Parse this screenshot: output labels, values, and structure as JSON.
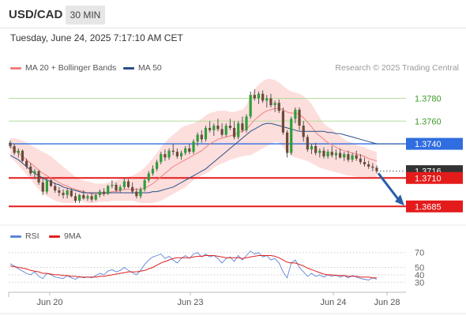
{
  "header": {
    "symbol": "USD/CAD",
    "timeframe": "30 MIN",
    "datetime": "Tuesday, June 24, 2025 7:17:10 AM CET",
    "credit": "Research © 2025 Trading Central"
  },
  "legends": {
    "main": [
      {
        "label": "MA 20 + Bollinger Bands",
        "color": "#f08080"
      },
      {
        "label": "MA 50",
        "color": "#2a4f8a"
      }
    ],
    "rsi": [
      {
        "label": "RSI",
        "color": "#5c86d6"
      },
      {
        "label": "9MA",
        "color": "#e02020"
      }
    ]
  },
  "chart_data": [
    {
      "type": "candlestick",
      "symbol": "USD/CAD",
      "x_ticks": [
        "Jun 20",
        "Jun 23",
        "Jun 24",
        "Jun 28"
      ],
      "ylim": [
        1.3672,
        1.3797
      ],
      "current_price": 1.3716,
      "levels": [
        {
          "label": "1.3780",
          "value": 1.378,
          "color": "#a8d68a",
          "label_color": "#3d9a2a",
          "style": "resistance"
        },
        {
          "label": "1.3760",
          "value": 1.376,
          "color": "#a8d68a",
          "label_color": "#3d9a2a",
          "style": "resistance"
        },
        {
          "label": "1.3740",
          "value": 1.374,
          "color": "#2f6de0",
          "label_color": "#ffffff",
          "style": "pivot"
        },
        {
          "label": "1.3716",
          "value": 1.3716,
          "color": "#333333",
          "label_color": "#ffffff",
          "style": "last"
        },
        {
          "label": "1.3710",
          "value": 1.371,
          "color": "#e41b1b",
          "label_color": "#ffffff",
          "style": "support"
        },
        {
          "label": "1.3685",
          "value": 1.3685,
          "color": "#e41b1b",
          "label_color": "#ffffff",
          "style": "support"
        }
      ],
      "candles": [
        [
          1.3741,
          1.3743,
          1.3736,
          1.3738
        ],
        [
          1.3738,
          1.374,
          1.373,
          1.3732
        ],
        [
          1.3732,
          1.3736,
          1.3728,
          1.3734
        ],
        [
          1.3734,
          1.3735,
          1.3724,
          1.3725
        ],
        [
          1.3725,
          1.3727,
          1.3718,
          1.372
        ],
        [
          1.372,
          1.3723,
          1.3712,
          1.3714
        ],
        [
          1.3714,
          1.3718,
          1.3709,
          1.3716
        ],
        [
          1.3716,
          1.3717,
          1.3704,
          1.3706
        ],
        [
          1.3706,
          1.3711,
          1.3695,
          1.3698
        ],
        [
          1.3698,
          1.371,
          1.3696,
          1.3708
        ],
        [
          1.3708,
          1.371,
          1.3702,
          1.3703
        ],
        [
          1.3703,
          1.3706,
          1.3697,
          1.3699
        ],
        [
          1.3699,
          1.3702,
          1.3694,
          1.3697
        ],
        [
          1.3697,
          1.37,
          1.3692,
          1.3695
        ],
        [
          1.3695,
          1.3701,
          1.3692,
          1.3699
        ],
        [
          1.3699,
          1.3701,
          1.3693,
          1.3694
        ],
        [
          1.3694,
          1.3697,
          1.3688,
          1.369
        ],
        [
          1.369,
          1.3696,
          1.3688,
          1.3695
        ],
        [
          1.3695,
          1.3699,
          1.3691,
          1.3692
        ],
        [
          1.3692,
          1.3696,
          1.369,
          1.3694
        ],
        [
          1.3694,
          1.3697,
          1.3689,
          1.3691
        ],
        [
          1.3691,
          1.3696,
          1.369,
          1.3695
        ],
        [
          1.3695,
          1.37,
          1.3693,
          1.3698
        ],
        [
          1.3698,
          1.3701,
          1.3694,
          1.3696
        ],
        [
          1.3696,
          1.3704,
          1.3695,
          1.3703
        ],
        [
          1.3703,
          1.3708,
          1.3701,
          1.3704
        ],
        [
          1.3704,
          1.3706,
          1.3698,
          1.3699
        ],
        [
          1.3699,
          1.3704,
          1.3697,
          1.3702
        ],
        [
          1.3702,
          1.371,
          1.37,
          1.3707
        ],
        [
          1.3707,
          1.3709,
          1.3701,
          1.3702
        ],
        [
          1.3702,
          1.3706,
          1.3696,
          1.3698
        ],
        [
          1.3698,
          1.3701,
          1.3692,
          1.3694
        ],
        [
          1.3694,
          1.3702,
          1.3692,
          1.37
        ],
        [
          1.37,
          1.371,
          1.3698,
          1.3708
        ],
        [
          1.3708,
          1.3716,
          1.3706,
          1.3714
        ],
        [
          1.3714,
          1.3721,
          1.3712,
          1.3718
        ],
        [
          1.3718,
          1.3726,
          1.3716,
          1.3724
        ],
        [
          1.3724,
          1.3733,
          1.3722,
          1.3731
        ],
        [
          1.3731,
          1.3735,
          1.3725,
          1.3728
        ],
        [
          1.3728,
          1.3736,
          1.3726,
          1.3734
        ],
        [
          1.3734,
          1.374,
          1.373,
          1.3733
        ],
        [
          1.3733,
          1.3736,
          1.3727,
          1.3729
        ],
        [
          1.3729,
          1.3734,
          1.3726,
          1.3732
        ],
        [
          1.3732,
          1.3738,
          1.373,
          1.3736
        ],
        [
          1.3736,
          1.374,
          1.3731,
          1.3733
        ],
        [
          1.3733,
          1.3744,
          1.3731,
          1.3742
        ],
        [
          1.3742,
          1.375,
          1.3738,
          1.3748
        ],
        [
          1.3748,
          1.3752,
          1.3741,
          1.3744
        ],
        [
          1.3744,
          1.3756,
          1.3742,
          1.3754
        ],
        [
          1.3754,
          1.376,
          1.375,
          1.3752
        ],
        [
          1.3752,
          1.3758,
          1.3747,
          1.3756
        ],
        [
          1.3756,
          1.3762,
          1.3751,
          1.3753
        ],
        [
          1.3753,
          1.3758,
          1.3746,
          1.3748
        ],
        [
          1.3748,
          1.3758,
          1.3746,
          1.3756
        ],
        [
          1.3756,
          1.3762,
          1.3752,
          1.3754
        ],
        [
          1.3754,
          1.376,
          1.3744,
          1.3746
        ],
        [
          1.3746,
          1.376,
          1.3744,
          1.3758
        ],
        [
          1.3758,
          1.3764,
          1.375,
          1.3752
        ],
        [
          1.3752,
          1.3766,
          1.375,
          1.3764
        ],
        [
          1.3764,
          1.3786,
          1.3762,
          1.3783
        ],
        [
          1.3783,
          1.3788,
          1.3778,
          1.378
        ],
        [
          1.378,
          1.3786,
          1.3775,
          1.3784
        ],
        [
          1.3784,
          1.3787,
          1.3776,
          1.3778
        ],
        [
          1.3778,
          1.3783,
          1.3772,
          1.378
        ],
        [
          1.378,
          1.3784,
          1.3772,
          1.3774
        ],
        [
          1.3774,
          1.3778,
          1.3768,
          1.3776
        ],
        [
          1.3776,
          1.3779,
          1.3767,
          1.3769
        ],
        [
          1.3769,
          1.3772,
          1.3748,
          1.375
        ],
        [
          1.375,
          1.3752,
          1.3728,
          1.3732
        ],
        [
          1.3732,
          1.3764,
          1.373,
          1.3762
        ],
        [
          1.3762,
          1.3772,
          1.3758,
          1.377
        ],
        [
          1.377,
          1.3772,
          1.3752,
          1.3756
        ],
        [
          1.3756,
          1.376,
          1.3742,
          1.3746
        ],
        [
          1.3746,
          1.3748,
          1.3733,
          1.3735
        ],
        [
          1.3735,
          1.374,
          1.3731,
          1.3738
        ],
        [
          1.3738,
          1.3741,
          1.373,
          1.3732
        ],
        [
          1.3732,
          1.3736,
          1.3728,
          1.3734
        ],
        [
          1.3734,
          1.3737,
          1.3727,
          1.3729
        ],
        [
          1.3729,
          1.3735,
          1.3727,
          1.3733
        ],
        [
          1.3733,
          1.3738,
          1.3728,
          1.373
        ],
        [
          1.373,
          1.3735,
          1.3726,
          1.3732
        ],
        [
          1.3732,
          1.3736,
          1.3727,
          1.3728
        ],
        [
          1.3728,
          1.3733,
          1.3725,
          1.3731
        ],
        [
          1.3731,
          1.3734,
          1.3724,
          1.3726
        ],
        [
          1.3726,
          1.3732,
          1.3724,
          1.373
        ],
        [
          1.373,
          1.3734,
          1.3725,
          1.3727
        ],
        [
          1.3727,
          1.3731,
          1.3722,
          1.3724
        ],
        [
          1.3724,
          1.3728,
          1.372,
          1.3722
        ],
        [
          1.3722,
          1.3725,
          1.3718,
          1.372
        ],
        [
          1.372,
          1.3723,
          1.3716,
          1.3719
        ],
        [
          1.3719,
          1.3721,
          1.3714,
          1.3716
        ]
      ],
      "ma20": [
        1.3738,
        1.3735,
        1.3732,
        1.3729,
        1.3726,
        1.3723,
        1.372,
        1.3717,
        1.3714,
        1.3712,
        1.371,
        1.3708,
        1.3706,
        1.3704,
        1.3703,
        1.3701,
        1.37,
        1.3699,
        1.3698,
        1.3697,
        1.3696,
        1.3696,
        1.3696,
        1.3696,
        1.3697,
        1.3698,
        1.3698,
        1.3699,
        1.37,
        1.37,
        1.37,
        1.37,
        1.37,
        1.3701,
        1.3703,
        1.3705,
        1.3708,
        1.3711,
        1.3714,
        1.3717,
        1.372,
        1.3722,
        1.3724,
        1.3726,
        1.3728,
        1.373,
        1.3732,
        1.3734,
        1.3737,
        1.374,
        1.3742,
        1.3744,
        1.3745,
        1.3746,
        1.3747,
        1.3748,
        1.375,
        1.3751,
        1.3753,
        1.3757,
        1.3761,
        1.3764,
        1.3767,
        1.3769,
        1.377,
        1.3771,
        1.3771,
        1.377,
        1.3768,
        1.3767,
        1.3767,
        1.3766,
        1.3763,
        1.3759,
        1.3755,
        1.375,
        1.3747,
        1.3744,
        1.3741,
        1.3739,
        1.3737,
        1.3735,
        1.3734,
        1.3733,
        1.3732,
        1.3731,
        1.373,
        1.3729,
        1.3727,
        1.3726,
        1.3725
      ],
      "bb_upper": [
        1.3745,
        1.3745,
        1.3744,
        1.3743,
        1.3741,
        1.3739,
        1.3737,
        1.3735,
        1.3733,
        1.3731,
        1.3729,
        1.3726,
        1.3723,
        1.372,
        1.3717,
        1.3714,
        1.3711,
        1.3709,
        1.3708,
        1.3707,
        1.3706,
        1.3705,
        1.3705,
        1.3705,
        1.3706,
        1.3707,
        1.3708,
        1.3709,
        1.371,
        1.3711,
        1.3712,
        1.3714,
        1.3716,
        1.3719,
        1.3723,
        1.3727,
        1.3732,
        1.3737,
        1.3741,
        1.3745,
        1.3748,
        1.3751,
        1.3754,
        1.3756,
        1.3757,
        1.3758,
        1.376,
        1.3762,
        1.3765,
        1.3767,
        1.3768,
        1.3769,
        1.3769,
        1.3769,
        1.3768,
        1.3768,
        1.3769,
        1.377,
        1.3774,
        1.3782,
        1.3788,
        1.3792,
        1.3795,
        1.3797,
        1.3797,
        1.3796,
        1.3794,
        1.3791,
        1.3788,
        1.3786,
        1.3785,
        1.3784,
        1.3782,
        1.3779,
        1.3775,
        1.3769,
        1.3763,
        1.3758,
        1.3755,
        1.3753,
        1.375,
        1.3747,
        1.3744,
        1.3742,
        1.3741,
        1.3739,
        1.3738,
        1.3737,
        1.3735,
        1.3734,
        1.3733
      ],
      "bb_lower": [
        1.3728,
        1.3725,
        1.3721,
        1.3717,
        1.3713,
        1.3709,
        1.3704,
        1.37,
        1.3697,
        1.3694,
        1.3692,
        1.369,
        1.3689,
        1.3688,
        1.3688,
        1.3688,
        1.3689,
        1.369,
        1.3689,
        1.3688,
        1.3688,
        1.3688,
        1.3689,
        1.3689,
        1.3689,
        1.369,
        1.369,
        1.369,
        1.369,
        1.369,
        1.369,
        1.3689,
        1.3688,
        1.3688,
        1.3688,
        1.3688,
        1.3689,
        1.369,
        1.3692,
        1.3694,
        1.3696,
        1.3698,
        1.37,
        1.3702,
        1.3705,
        1.3708,
        1.371,
        1.3712,
        1.3714,
        1.3716,
        1.3719,
        1.3721,
        1.3723,
        1.3724,
        1.3726,
        1.3727,
        1.3728,
        1.3729,
        1.373,
        1.373,
        1.3732,
        1.3734,
        1.3736,
        1.3738,
        1.374,
        1.3742,
        1.3741,
        1.3737,
        1.3733,
        1.373,
        1.3728,
        1.3727,
        1.3726,
        1.3725,
        1.3723,
        1.3721,
        1.3719,
        1.3718,
        1.3717,
        1.3716,
        1.3715,
        1.3714,
        1.3713,
        1.3712,
        1.3712,
        1.3711,
        1.3711,
        1.3711,
        1.3711,
        1.371,
        1.371
      ],
      "ma50": [
        1.373,
        1.3728,
        1.3726,
        1.3723,
        1.372,
        1.3717,
        1.3714,
        1.3712,
        1.371,
        1.3708,
        1.3707,
        1.3705,
        1.3704,
        1.3702,
        1.3701,
        1.37,
        1.3699,
        1.3698,
        1.3697,
        1.3697,
        1.3697,
        1.3697,
        1.3697,
        1.3697,
        1.3697,
        1.3697,
        1.3697,
        1.3697,
        1.3697,
        1.3697,
        1.3697,
        1.3697,
        1.3697,
        1.3697,
        1.3697,
        1.3698,
        1.3698,
        1.3699,
        1.37,
        1.3701,
        1.3702,
        1.3704,
        1.3706,
        1.3708,
        1.371,
        1.3712,
        1.3714,
        1.3716,
        1.3718,
        1.3721,
        1.3724,
        1.3727,
        1.373,
        1.3733,
        1.3736,
        1.3739,
        1.3742,
        1.3745,
        1.3748,
        1.3751,
        1.3753,
        1.3755,
        1.3757,
        1.3758,
        1.3758,
        1.3757,
        1.3756,
        1.3755,
        1.3754,
        1.3753,
        1.3752,
        1.3751,
        1.3751,
        1.3751,
        1.3751,
        1.3751,
        1.3751,
        1.3751,
        1.375,
        1.375,
        1.3749,
        1.3749,
        1.3748,
        1.3747,
        1.3746,
        1.3745,
        1.3744,
        1.3743,
        1.3742,
        1.3741,
        1.374
      ],
      "projection": [
        1.371,
        1.3685
      ]
    },
    {
      "type": "line",
      "title": "RSI",
      "ylim": [
        25,
        75
      ],
      "y_ticks": [
        70,
        50,
        40,
        30
      ],
      "series": [
        {
          "name": "RSI",
          "color": "#5c86d6",
          "values": [
            55,
            52,
            48,
            45,
            42,
            40,
            44,
            38,
            35,
            42,
            40,
            37,
            36,
            35,
            39,
            36,
            34,
            38,
            36,
            37,
            36,
            39,
            42,
            40,
            45,
            47,
            44,
            46,
            50,
            46,
            43,
            40,
            46,
            54,
            60,
            64,
            66,
            68,
            62,
            65,
            60,
            56,
            62,
            66,
            62,
            68,
            70,
            64,
            68,
            64,
            66,
            62,
            56,
            62,
            64,
            58,
            66,
            60,
            66,
            72,
            68,
            70,
            64,
            66,
            60,
            62,
            56,
            44,
            36,
            56,
            60,
            50,
            44,
            38,
            42,
            38,
            40,
            37,
            40,
            38,
            40,
            37,
            39,
            36,
            39,
            37,
            35,
            34,
            33,
            36,
            34
          ]
        },
        {
          "name": "9MA",
          "color": "#e02020",
          "values": [
            52,
            51,
            50,
            49,
            48,
            46,
            45,
            44,
            42,
            42,
            41,
            40,
            40,
            39,
            39,
            38,
            38,
            37,
            37,
            37,
            37,
            37,
            38,
            38,
            39,
            40,
            41,
            42,
            43,
            44,
            44,
            44,
            45,
            46,
            48,
            50,
            53,
            56,
            58,
            60,
            62,
            63,
            63,
            63,
            63,
            64,
            65,
            65,
            66,
            66,
            66,
            65,
            64,
            63,
            63,
            63,
            63,
            62,
            63,
            64,
            65,
            66,
            66,
            66,
            66,
            65,
            63,
            60,
            57,
            56,
            56,
            54,
            52,
            49,
            47,
            45,
            43,
            41,
            40,
            40,
            39,
            39,
            39,
            38,
            38,
            38,
            37,
            37,
            37,
            36,
            36
          ]
        }
      ]
    }
  ]
}
